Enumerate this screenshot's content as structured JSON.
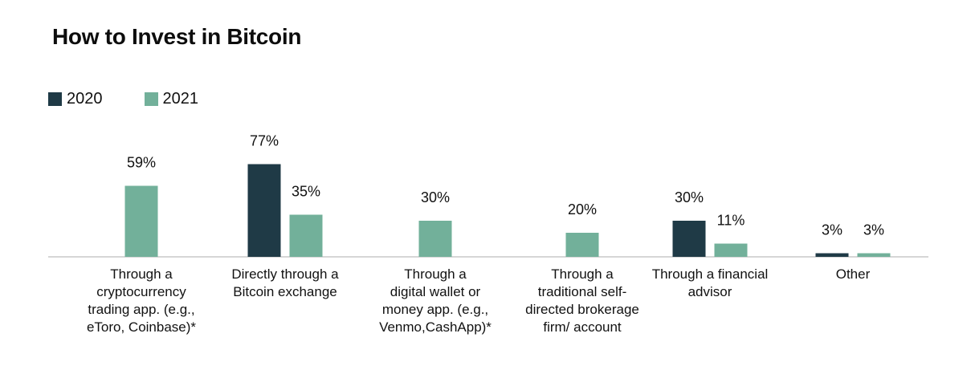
{
  "chart_data": {
    "type": "bar",
    "title": "How to Invest in Bitcoin",
    "categories": [
      "Through a\ncryptocurrency\ntrading app. (e.g.,\neToro, Coinbase)*",
      "Directly through a\nBitcoin exchange",
      "Through a\ndigital wallet or\nmoney app. (e.g.,\nVenmo,CashApp)*",
      "Through a\ntraditional self-\ndirected brokerage\nfirm/ account",
      "Through a financial\nadvisor",
      "Other"
    ],
    "series": [
      {
        "name": "2020",
        "color": "#1f3a46",
        "values": [
          null,
          77,
          null,
          null,
          30,
          3
        ],
        "labels": [
          "",
          "77%",
          "",
          "",
          "30%",
          "3%"
        ]
      },
      {
        "name": "2021",
        "color": "#72b09a",
        "values": [
          59,
          35,
          30,
          20,
          11,
          3
        ],
        "labels": [
          "59%",
          "35%",
          "30%",
          "20%",
          "11%",
          "3%"
        ]
      }
    ],
    "ylim": [
      0,
      100
    ],
    "grid": false,
    "legend_position": "top-left",
    "xlabel": "",
    "ylabel": ""
  }
}
